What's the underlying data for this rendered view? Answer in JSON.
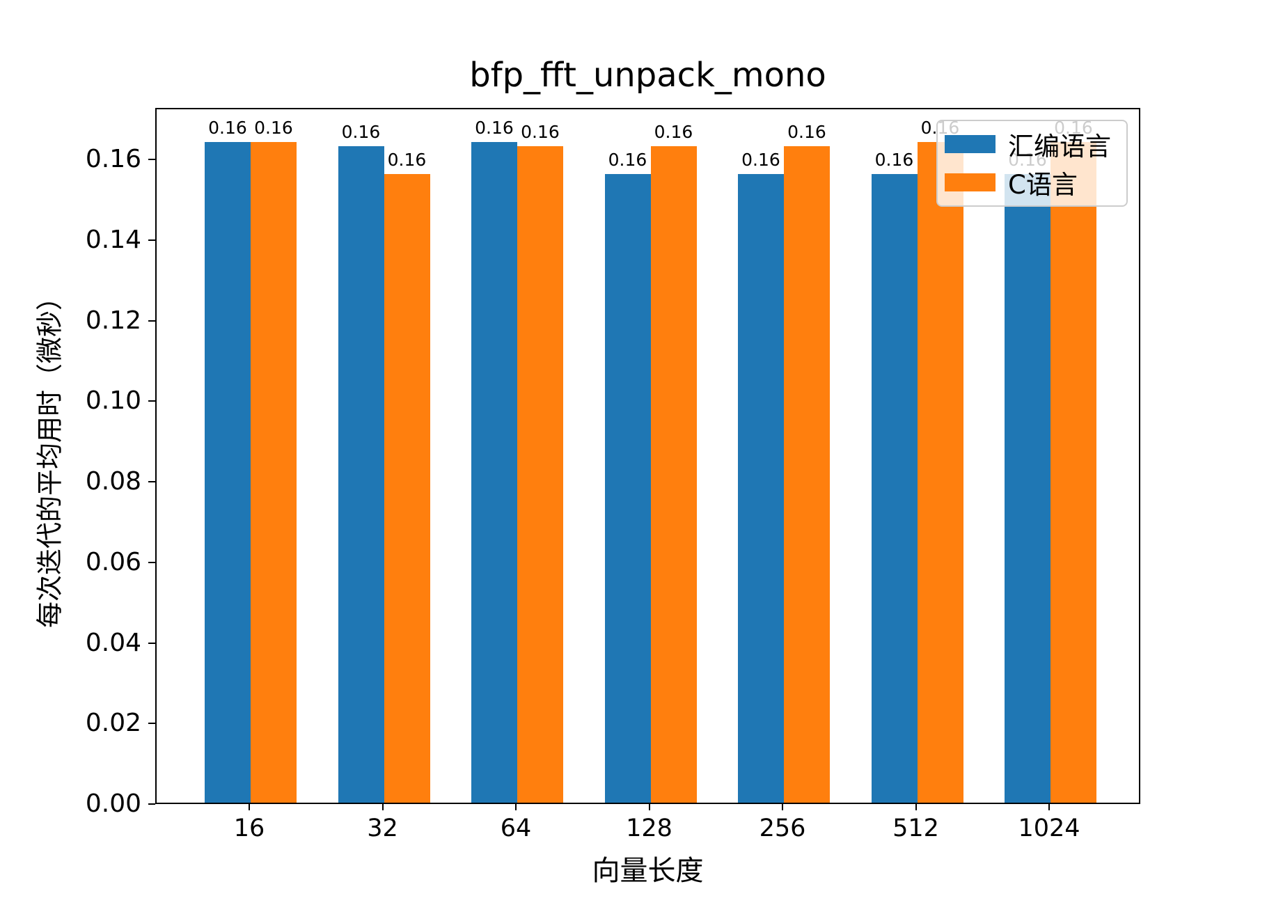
{
  "chart_data": {
    "type": "bar",
    "title": "bfp_fft_unpack_mono",
    "xlabel": "向量长度",
    "ylabel": "每次迭代的平均用时（微秒）",
    "categories": [
      "16",
      "32",
      "64",
      "128",
      "256",
      "512",
      "1024"
    ],
    "series": [
      {
        "name": "汇编语言",
        "color": "#1f77b4",
        "values": [
          0.164,
          0.163,
          0.164,
          0.156,
          0.156,
          0.156,
          0.156
        ],
        "bar_labels": [
          "0.16",
          "0.16",
          "0.16",
          "0.16",
          "0.16",
          "0.16",
          "0.16"
        ]
      },
      {
        "name": "C语言",
        "color": "#ff7f0e",
        "values": [
          0.164,
          0.156,
          0.163,
          0.163,
          0.163,
          0.164,
          0.164
        ],
        "bar_labels": [
          "0.16",
          "0.16",
          "0.16",
          "0.16",
          "0.16",
          "0.16",
          "0.16"
        ]
      }
    ],
    "ylim": [
      0,
      0.1728
    ],
    "yticks": [
      "0.00",
      "0.02",
      "0.04",
      "0.06",
      "0.08",
      "0.10",
      "0.12",
      "0.14",
      "0.16"
    ],
    "ytick_values": [
      0.0,
      0.02,
      0.04,
      0.06,
      0.08,
      0.1,
      0.12,
      0.14,
      0.16
    ],
    "grid": false,
    "legend_position": "upper right",
    "axis_color": "#000000",
    "background_color": "#ffffff"
  }
}
